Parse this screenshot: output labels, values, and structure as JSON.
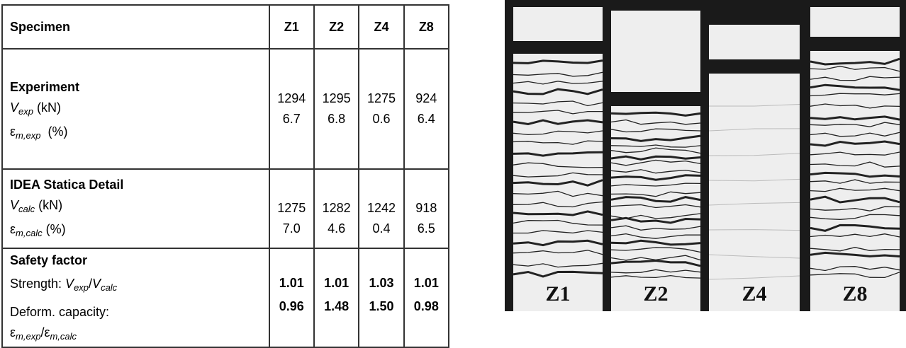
{
  "table": {
    "header": {
      "label": "Specimen",
      "specimens": [
        "Z1",
        "Z2",
        "Z4",
        "Z8"
      ]
    },
    "experiment": {
      "title": "Experiment",
      "v_symbol": "V",
      "v_sub": "exp",
      "v_unit": "(kN)",
      "e_symbol": "ε",
      "e_sub": "m,exp",
      "e_unit": "(%)",
      "v_values": [
        "1294",
        "1295",
        "1275",
        "924"
      ],
      "e_values": [
        "6.7",
        "6.8",
        "0.6",
        "6.4"
      ]
    },
    "calc": {
      "title": "IDEA Statica Detail",
      "v_symbol": "V",
      "v_sub": "calc",
      "v_unit": "(kN)",
      "e_symbol": "ε",
      "e_sub": "m,calc",
      "e_unit": "(%)",
      "v_values": [
        "1275",
        "1282",
        "1242",
        "918"
      ],
      "e_values": [
        "7.0",
        "4.6",
        "0.4",
        "6.5"
      ]
    },
    "safety": {
      "title": "Safety factor",
      "strength_label": "Strength: ",
      "strength_values": [
        "1.01",
        "1.01",
        "1.03",
        "1.01"
      ],
      "deform_label": "Deform. capacity:",
      "deform_values": [
        "0.96",
        "1.48",
        "1.50",
        "0.98"
      ]
    }
  },
  "photo": {
    "labels": [
      "Z1",
      "Z2",
      "Z4",
      "Z8"
    ]
  }
}
